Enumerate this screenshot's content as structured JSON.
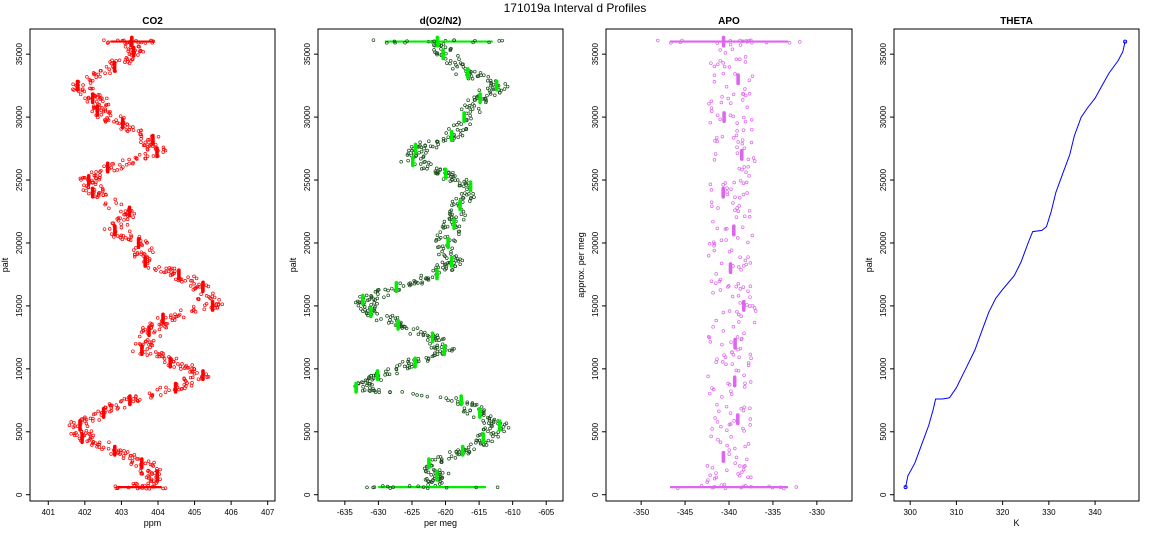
{
  "figure": {
    "title": "171019a   Interval d Profiles"
  },
  "chart_data": [
    {
      "type": "scatter",
      "title": "CO2",
      "xlabel": "ppm",
      "ylabel": "palt",
      "xlim": [
        400.5,
        407.2
      ],
      "ylim": [
        -500,
        37000
      ],
      "xticks": [
        401,
        402,
        403,
        404,
        405,
        406,
        407
      ],
      "yticks": [
        0,
        5000,
        10000,
        15000,
        20000,
        25000,
        30000,
        35000
      ],
      "color": "#ff0000",
      "series": [
        {
          "profile": [
            [
              403.3,
              36000
            ],
            [
              403.4,
              35200
            ],
            [
              402.8,
              34000
            ],
            [
              401.8,
              32500
            ],
            [
              402.3,
              31500
            ],
            [
              402.4,
              30500
            ],
            [
              403.0,
              29500
            ],
            [
              403.8,
              28200
            ],
            [
              404.0,
              27200
            ],
            [
              402.7,
              26000
            ],
            [
              402.1,
              25000
            ],
            [
              402.3,
              24000
            ],
            [
              403.2,
              22500
            ],
            [
              402.8,
              21000
            ],
            [
              403.5,
              20000
            ],
            [
              403.7,
              18500
            ],
            [
              404.5,
              17500
            ],
            [
              405.2,
              16500
            ],
            [
              405.5,
              15000
            ],
            [
              404.2,
              14000
            ],
            [
              403.8,
              13000
            ],
            [
              403.6,
              11500
            ],
            [
              404.4,
              10500
            ],
            [
              405.2,
              9500
            ],
            [
              404.5,
              8500
            ],
            [
              403.2,
              7500
            ],
            [
              402.5,
              6500
            ],
            [
              401.8,
              5500
            ],
            [
              402.0,
              4500
            ],
            [
              402.8,
              3500
            ],
            [
              403.6,
              2500
            ],
            [
              403.9,
              1500
            ],
            [
              403.5,
              600
            ]
          ]
        }
      ],
      "annotations": []
    },
    {
      "type": "scatter",
      "title": "d(O2/N2)",
      "xlabel": "per meg",
      "ylabel": "palt",
      "xlim": [
        -639,
        -602.5
      ],
      "ylim": [
        -500,
        37000
      ],
      "xticks": [
        -635,
        -630,
        -625,
        -620,
        -615,
        -610,
        -605
      ],
      "yticks": [
        0,
        5000,
        10000,
        15000,
        20000,
        25000,
        30000,
        35000
      ],
      "color": "#00ee00",
      "series": [
        {
          "profile": [
            [
              -621,
              36000
            ],
            [
              -620,
              35000
            ],
            [
              -617,
              33500
            ],
            [
              -612,
              32500
            ],
            [
              -615,
              31500
            ],
            [
              -617,
              30000
            ],
            [
              -619,
              28500
            ],
            [
              -624,
              27500
            ],
            [
              -625,
              26500
            ],
            [
              -620,
              25500
            ],
            [
              -616,
              24500
            ],
            [
              -618,
              23000
            ],
            [
              -619,
              21500
            ],
            [
              -620,
              20000
            ],
            [
              -619,
              18500
            ],
            [
              -621,
              17500
            ],
            [
              -627,
              16500
            ],
            [
              -632,
              15500
            ],
            [
              -631,
              14500
            ],
            [
              -627,
              13500
            ],
            [
              -622,
              12500
            ],
            [
              -620,
              11500
            ],
            [
              -625,
              10500
            ],
            [
              -630,
              9500
            ],
            [
              -633,
              8500
            ],
            [
              -618,
              7500
            ],
            [
              -615,
              6500
            ],
            [
              -612,
              5500
            ],
            [
              -614,
              4500
            ],
            [
              -617,
              3500
            ],
            [
              -622,
              2500
            ],
            [
              -621,
              1500
            ],
            [
              -622,
              600
            ]
          ]
        }
      ],
      "annotations": []
    },
    {
      "type": "scatter",
      "title": "APO",
      "xlabel": "",
      "ylabel": "approx. per meg",
      "xlim": [
        -354,
        -326
      ],
      "ylim": [
        -500,
        37000
      ],
      "xticks": [
        -350,
        -345,
        -340,
        -335,
        -330
      ],
      "yticks": [
        0,
        5000,
        10000,
        15000,
        20000,
        25000,
        30000,
        35000
      ],
      "color": "#dd66ee",
      "series": [
        {
          "profile": [
            [
              -340,
              36000
            ],
            [
              -339.5,
              33000
            ],
            [
              -340,
              30000
            ],
            [
              -339,
              27000
            ],
            [
              -340,
              24000
            ],
            [
              -339.5,
              21000
            ],
            [
              -340,
              18000
            ],
            [
              -339,
              15000
            ],
            [
              -340,
              12000
            ],
            [
              -340,
              9000
            ],
            [
              -339.5,
              6000
            ],
            [
              -340,
              3000
            ],
            [
              -340,
              600
            ]
          ]
        }
      ],
      "annotations": []
    },
    {
      "type": "line",
      "title": "THETA",
      "xlabel": "K",
      "ylabel": "palt",
      "xlim": [
        296.5,
        349.5
      ],
      "ylim": [
        -500,
        37000
      ],
      "xticks": [
        300,
        310,
        320,
        330,
        340
      ],
      "yticks": [
        0,
        5000,
        10000,
        15000,
        20000,
        25000,
        30000,
        35000
      ],
      "color": "#0000ff",
      "series": [
        {
          "points": [
            [
              299,
              600
            ],
            [
              299.5,
              1500
            ],
            [
              301,
              2500
            ],
            [
              302.5,
              4000
            ],
            [
              304,
              5500
            ],
            [
              305,
              6800
            ],
            [
              305.5,
              7600
            ],
            [
              307,
              7600
            ],
            [
              308.5,
              7700
            ],
            [
              310,
              8500
            ],
            [
              312,
              10000
            ],
            [
              314,
              11500
            ],
            [
              315.5,
              13000
            ],
            [
              317,
              14500
            ],
            [
              318.5,
              15600
            ],
            [
              320,
              16300
            ],
            [
              322.5,
              17400
            ],
            [
              324,
              18500
            ],
            [
              325.5,
              20000
            ],
            [
              326.5,
              20900
            ],
            [
              328.5,
              21000
            ],
            [
              329.5,
              21300
            ],
            [
              330.5,
              22500
            ],
            [
              331.5,
              24000
            ],
            [
              333,
              25500
            ],
            [
              334.5,
              27000
            ],
            [
              335.5,
              28500
            ],
            [
              337,
              30000
            ],
            [
              338.5,
              30800
            ],
            [
              340,
              31500
            ],
            [
              341.5,
              32500
            ],
            [
              343,
              33500
            ],
            [
              345,
              34500
            ],
            [
              346,
              35200
            ],
            [
              346.5,
              36000
            ]
          ]
        }
      ],
      "annotations": []
    }
  ]
}
